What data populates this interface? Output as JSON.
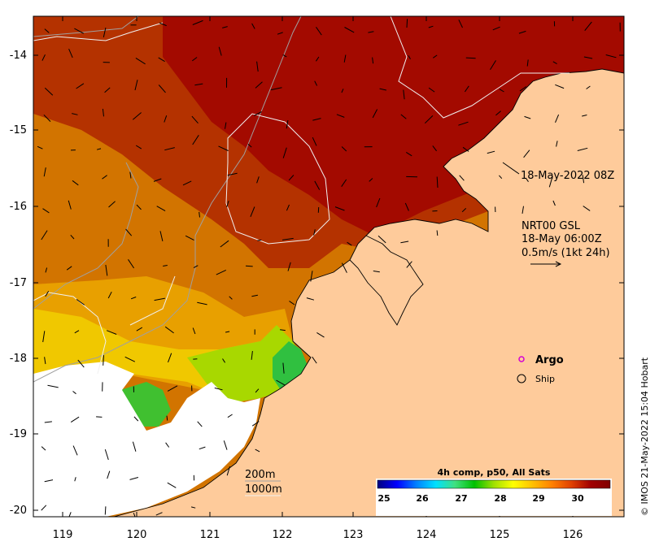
{
  "map": {
    "lon_ticks": [
      "119",
      "120",
      "121",
      "122",
      "123",
      "124",
      "125",
      "126"
    ],
    "lat_ticks": [
      "-14",
      "-15",
      "-16",
      "-17",
      "-18",
      "-19",
      "-20"
    ],
    "timestamp_label": "18-May-2022 08Z",
    "current_source": "NRT00 GSL",
    "current_time": "18-May 06:00Z",
    "current_scale": "0.5m/s (1kt 24h)",
    "legend": {
      "argo_label": "Argo",
      "ship_label": "Ship",
      "argo_color": "#d400d4"
    },
    "isobaths": {
      "label_200": "200m",
      "label_1000": "1000m"
    },
    "colorbar": {
      "title": "4h comp, p50, All Sats",
      "ticks": [
        "25",
        "26",
        "27",
        "28",
        "29",
        "30"
      ],
      "stops": [
        "#00007f",
        "#0000ff",
        "#0080ff",
        "#00e0ff",
        "#40e080",
        "#00c000",
        "#a0e000",
        "#ffff00",
        "#ffc000",
        "#ff8000",
        "#e04000",
        "#a00000",
        "#800000"
      ]
    },
    "credit": "© IMOS 21-May-2022 15:04 Hobart",
    "colors": {
      "land": "#fecb9b",
      "hot": "#a80f00",
      "warm": "#c85a00",
      "mid": "#de8c00",
      "yellow": "#f0c000",
      "green": "#30c040",
      "nodata": "#ffffff"
    }
  }
}
